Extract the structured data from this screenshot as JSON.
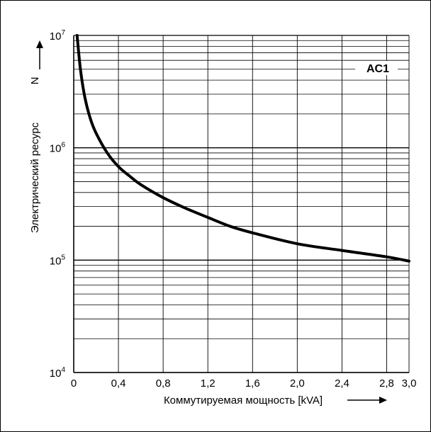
{
  "chart_data": {
    "type": "line",
    "title": "",
    "xlabel": "Коммутируемая мощность [kVA]",
    "ylabel": "Электрический ресурс",
    "ysymbol": "N",
    "xlim": [
      0,
      3.0
    ],
    "ylim": [
      10000,
      10000000
    ],
    "yscale": "log",
    "grid": true,
    "x_ticks": [
      0,
      0.4,
      0.8,
      1.2,
      1.6,
      2.0,
      2.4,
      2.8,
      3.0
    ],
    "x_tick_labels": [
      "0",
      "0,4",
      "0,8",
      "1,2",
      "1,6",
      "2,0",
      "2,4",
      "2,8",
      "3,0"
    ],
    "y_ticks": [
      {
        "base": "10",
        "exp": "4",
        "value": 10000
      },
      {
        "base": "10",
        "exp": "5",
        "value": 100000
      },
      {
        "base": "10",
        "exp": "6",
        "value": 1000000
      },
      {
        "base": "10",
        "exp": "7",
        "value": 10000000
      }
    ],
    "series": [
      {
        "name": "AC1",
        "x": [
          0.03,
          0.06,
          0.1,
          0.15,
          0.2,
          0.3,
          0.4,
          0.5,
          0.6,
          0.8,
          1.0,
          1.2,
          1.4,
          1.6,
          2.0,
          2.4,
          2.8,
          3.0
        ],
        "y": [
          10000000,
          5000000,
          2800000,
          1800000,
          1350000,
          900000,
          680000,
          560000,
          470000,
          360000,
          290000,
          240000,
          200000,
          175000,
          140000,
          122000,
          107000,
          98000
        ]
      }
    ],
    "annotation": "AC1",
    "colors": {
      "line": "#000000",
      "grid": "#000000",
      "background": "#ffffff"
    }
  }
}
